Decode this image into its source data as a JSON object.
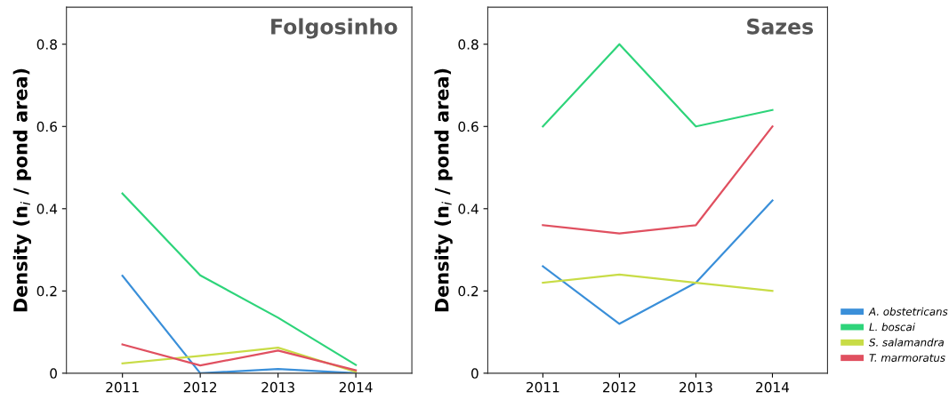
{
  "chart_data": [
    {
      "type": "line",
      "title": "Folgosinho",
      "ylabel": "Density (n$_{i}$ / pond area)",
      "categories": [
        "2011",
        "2012",
        "2013",
        "2014"
      ],
      "ylim": [
        0,
        0.89
      ],
      "yticks": [
        0,
        0.2,
        0.4,
        0.6,
        0.8
      ],
      "grid": false,
      "legend": false,
      "series": [
        {
          "color": "#3a8fd9",
          "values": [
            0.237,
            0,
            0.01,
            0
          ]
        },
        {
          "color": "#2ed47a",
          "values": [
            0.437,
            0.238,
            0.135,
            0.02
          ]
        },
        {
          "color": "#c8dc46",
          "values": [
            0.024,
            0.042,
            0.062,
            0.003
          ]
        },
        {
          "color": "#e05060",
          "values": [
            0.07,
            0.019,
            0.055,
            0.007
          ]
        }
      ]
    },
    {
      "type": "line",
      "title": "Sazes",
      "ylabel": "Density (n$_{i}$ / pond area)",
      "categories": [
        "2011",
        "2012",
        "2013",
        "2014"
      ],
      "ylim": [
        0,
        0.89
      ],
      "yticks": [
        0,
        0.2,
        0.4,
        0.6,
        0.8
      ],
      "grid": false,
      "legend": "right",
      "series": [
        {
          "name": "A. obstetricans",
          "color": "#3a8fd9",
          "values": [
            0.26,
            0.12,
            0.22,
            0.42
          ]
        },
        {
          "name": "L. boscai",
          "color": "#2ed47a",
          "values": [
            0.6,
            0.8,
            0.6,
            0.64
          ]
        },
        {
          "name": "S. salamandra",
          "color": "#c8dc46",
          "values": [
            0.22,
            0.24,
            0.22,
            0.2
          ]
        },
        {
          "name": "T. marmoratus",
          "color": "#e05060",
          "values": [
            0.36,
            0.34,
            0.36,
            0.6
          ]
        }
      ]
    }
  ]
}
